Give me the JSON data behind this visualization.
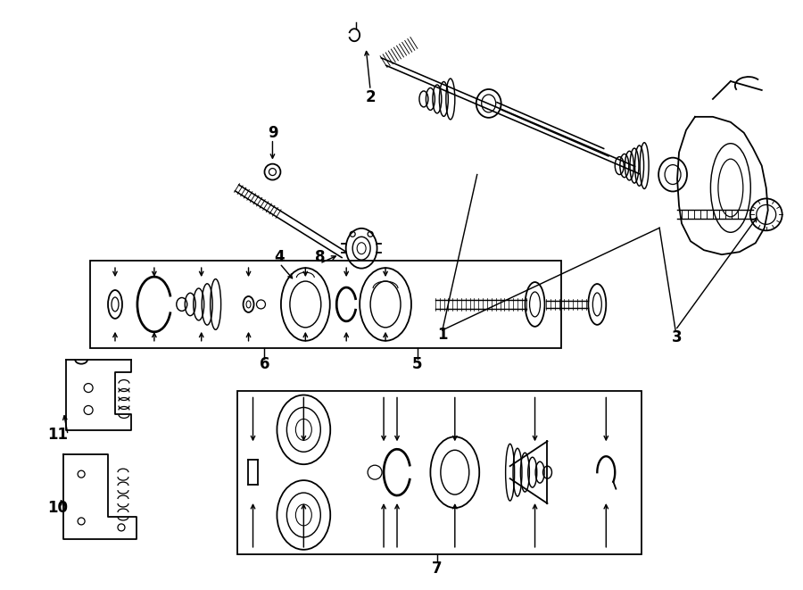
{
  "bg_color": "#ffffff",
  "line_color": "#000000",
  "figure_width": 9.0,
  "figure_height": 6.61,
  "dpi": 100
}
